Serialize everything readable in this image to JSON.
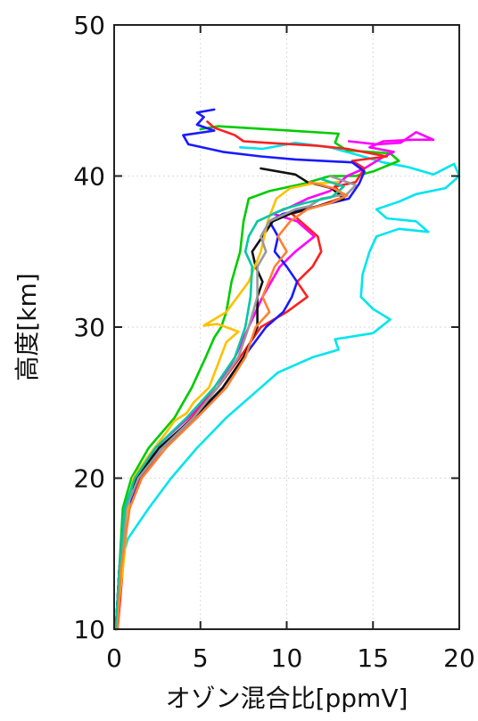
{
  "chart_data": {
    "type": "line",
    "orientation": "profile",
    "title": "",
    "xlabel": "オゾン混合比[ppmV]",
    "ylabel": "高度[km]",
    "xlim": [
      0,
      20
    ],
    "ylim": [
      10,
      50
    ],
    "xticks": [
      0,
      5,
      10,
      15,
      20
    ],
    "yticks": [
      10,
      20,
      30,
      40,
      50
    ],
    "grid": true,
    "legend": "none",
    "series": [
      {
        "color": "#00e5ee",
        "points": [
          [
            0.1,
            10
          ],
          [
            0.3,
            14
          ],
          [
            0.8,
            16
          ],
          [
            2,
            18
          ],
          [
            3.3,
            20
          ],
          [
            4.8,
            22
          ],
          [
            6.5,
            24
          ],
          [
            8.5,
            26
          ],
          [
            9.5,
            27
          ],
          [
            11.5,
            28
          ],
          [
            13,
            28.5
          ],
          [
            12.8,
            29.2
          ],
          [
            15,
            29.6
          ],
          [
            16,
            30.5
          ],
          [
            15,
            31.2
          ],
          [
            14.3,
            32
          ],
          [
            14.4,
            33.5
          ],
          [
            14.8,
            35
          ],
          [
            15.2,
            36
          ],
          [
            16.5,
            36.5
          ],
          [
            18.2,
            36.3
          ],
          [
            17.5,
            37
          ],
          [
            15.8,
            37.2
          ],
          [
            15.2,
            37.8
          ],
          [
            16.5,
            38.3
          ],
          [
            17.5,
            38.8
          ],
          [
            19.2,
            39.2
          ],
          [
            20,
            40
          ],
          [
            19.7,
            40.8
          ],
          [
            18.5,
            40.1
          ],
          [
            17,
            40.6
          ],
          [
            15.6,
            40.9
          ],
          [
            14.1,
            41.4
          ],
          [
            12.5,
            41.9
          ],
          [
            10.5,
            42.2
          ],
          [
            8.6,
            41.8
          ],
          [
            7.3,
            41.9
          ]
        ]
      },
      {
        "color": "#00cc00",
        "points": [
          [
            0.1,
            10
          ],
          [
            0.3,
            14
          ],
          [
            0.5,
            18
          ],
          [
            1,
            20
          ],
          [
            2,
            22
          ],
          [
            3.5,
            24
          ],
          [
            4.5,
            26
          ],
          [
            5.3,
            28
          ],
          [
            5.8,
            29.3
          ],
          [
            6.2,
            30
          ],
          [
            6.5,
            31
          ],
          [
            6.8,
            33
          ],
          [
            7.3,
            35
          ],
          [
            7.5,
            37
          ],
          [
            7.8,
            38.5
          ],
          [
            9,
            39
          ],
          [
            11,
            39.5
          ],
          [
            12.5,
            40
          ],
          [
            14,
            40
          ],
          [
            15,
            40.3
          ],
          [
            16.5,
            41
          ],
          [
            16,
            41.5
          ],
          [
            13.5,
            41.7
          ],
          [
            12.8,
            42.2
          ],
          [
            13,
            42.8
          ],
          [
            10.2,
            43
          ],
          [
            6,
            43.3
          ],
          [
            5,
            43.1
          ]
        ]
      },
      {
        "color": "#ff00ff",
        "points": [
          [
            0.1,
            10
          ],
          [
            0.3,
            14
          ],
          [
            0.6,
            18
          ],
          [
            1.3,
            20
          ],
          [
            2.4,
            22
          ],
          [
            4.3,
            24
          ],
          [
            6,
            26
          ],
          [
            7,
            28
          ],
          [
            7.8,
            30
          ],
          [
            8.6,
            32
          ],
          [
            9.6,
            34
          ],
          [
            10.5,
            35
          ],
          [
            11.6,
            36
          ],
          [
            10.6,
            37
          ],
          [
            9.2,
            37.5
          ],
          [
            10.3,
            38
          ],
          [
            11.2,
            38.5
          ],
          [
            12.5,
            39
          ],
          [
            13.5,
            40
          ],
          [
            14.5,
            40.5
          ],
          [
            15.5,
            41.2
          ],
          [
            16.2,
            41.6
          ],
          [
            14.8,
            41.9
          ],
          [
            15.6,
            42.3
          ],
          [
            17.3,
            42.4
          ],
          [
            18.5,
            42.4
          ],
          [
            17.5,
            42.9
          ],
          [
            16.6,
            42.2
          ],
          [
            15.2,
            42.1
          ],
          [
            13.6,
            42.3
          ]
        ]
      },
      {
        "color": "#ff2020",
        "points": [
          [
            0.2,
            10
          ],
          [
            0.5,
            14
          ],
          [
            0.8,
            18
          ],
          [
            1.5,
            20
          ],
          [
            2.8,
            22
          ],
          [
            4.5,
            24
          ],
          [
            6,
            26
          ],
          [
            7.3,
            28
          ],
          [
            8.5,
            30
          ],
          [
            10,
            31
          ],
          [
            11.2,
            32
          ],
          [
            10.6,
            33
          ],
          [
            11.5,
            34
          ],
          [
            12,
            35
          ],
          [
            11.8,
            36
          ],
          [
            10.8,
            37
          ],
          [
            10.3,
            37.5
          ],
          [
            11.8,
            38
          ],
          [
            13.3,
            38.6
          ],
          [
            12.8,
            39.3
          ],
          [
            14,
            39.6
          ],
          [
            14.5,
            40.5
          ],
          [
            13.8,
            41
          ],
          [
            15.8,
            41.3
          ],
          [
            13.5,
            41.8
          ],
          [
            11.8,
            42
          ],
          [
            8.8,
            42.2
          ],
          [
            7.5,
            42.3
          ],
          [
            7,
            42.7
          ],
          [
            5.8,
            43.2
          ],
          [
            5.4,
            43.6
          ]
        ]
      },
      {
        "color": "#1a1aff",
        "points": [
          [
            0.1,
            10
          ],
          [
            0.3,
            14
          ],
          [
            0.8,
            18
          ],
          [
            1.4,
            20
          ],
          [
            2.8,
            22
          ],
          [
            4.8,
            24
          ],
          [
            6.3,
            26
          ],
          [
            7.5,
            28
          ],
          [
            8.8,
            30
          ],
          [
            9.8,
            31
          ],
          [
            10.3,
            32
          ],
          [
            10.6,
            33
          ],
          [
            10,
            34
          ],
          [
            9.3,
            35
          ],
          [
            9.5,
            36
          ],
          [
            9,
            37
          ],
          [
            9.8,
            37.5
          ],
          [
            11.8,
            38
          ],
          [
            13.6,
            38.5
          ],
          [
            14.2,
            39.5
          ],
          [
            14.5,
            40.3
          ],
          [
            13.8,
            40.9
          ],
          [
            10.5,
            41.1
          ],
          [
            8.5,
            41.3
          ],
          [
            6.3,
            41.6
          ],
          [
            4.3,
            42.1
          ],
          [
            4,
            42.7
          ],
          [
            5.8,
            43
          ],
          [
            4.8,
            43.4
          ],
          [
            5.2,
            43.9
          ],
          [
            4.8,
            44.2
          ],
          [
            5.8,
            44.4
          ]
        ]
      },
      {
        "color": "#111111",
        "points": [
          [
            0.1,
            10
          ],
          [
            0.3,
            14
          ],
          [
            0.7,
            18
          ],
          [
            1.3,
            20
          ],
          [
            2.6,
            22
          ],
          [
            4.6,
            24
          ],
          [
            6.3,
            26
          ],
          [
            7.5,
            28
          ],
          [
            8.3,
            30
          ],
          [
            8.3,
            32
          ],
          [
            8.6,
            33
          ],
          [
            8.2,
            34
          ],
          [
            8,
            35
          ],
          [
            8.6,
            36
          ],
          [
            9.2,
            37
          ],
          [
            10.2,
            37.5
          ],
          [
            11.8,
            38
          ],
          [
            13.3,
            38.5
          ],
          [
            12.6,
            39.2
          ],
          [
            11.2,
            39.6
          ],
          [
            10.5,
            40.1
          ],
          [
            8.5,
            40.5
          ]
        ]
      },
      {
        "color": "#ffc000",
        "points": [
          [
            0.1,
            10
          ],
          [
            0.6,
            15
          ],
          [
            0.8,
            18
          ],
          [
            1.1,
            20
          ],
          [
            2,
            21.5
          ],
          [
            3,
            23
          ],
          [
            3.5,
            23.8
          ],
          [
            4.2,
            24.3
          ],
          [
            4.6,
            25
          ],
          [
            5.5,
            26
          ],
          [
            6,
            27.5
          ],
          [
            6.5,
            29
          ],
          [
            7.2,
            29.7
          ],
          [
            6,
            30.2
          ],
          [
            5.2,
            30.1
          ],
          [
            6.5,
            31
          ],
          [
            7.8,
            33
          ],
          [
            8.5,
            35
          ],
          [
            8.9,
            37
          ],
          [
            9.4,
            38.5
          ],
          [
            10.2,
            39.2
          ],
          [
            11.5,
            39.5
          ],
          [
            13,
            39.6
          ]
        ]
      },
      {
        "color": "#999999",
        "points": [
          [
            0.1,
            10
          ],
          [
            0.4,
            14
          ],
          [
            0.7,
            18
          ],
          [
            1.4,
            20
          ],
          [
            2.8,
            22
          ],
          [
            4.6,
            24
          ],
          [
            6,
            26
          ],
          [
            7.2,
            28
          ],
          [
            7.8,
            30
          ],
          [
            8.3,
            32
          ],
          [
            8.3,
            34
          ],
          [
            8.8,
            35
          ],
          [
            8.5,
            36
          ],
          [
            9,
            37
          ],
          [
            10.5,
            37.8
          ],
          [
            11.3,
            38
          ],
          [
            12,
            38.5
          ],
          [
            13.5,
            38.8
          ],
          [
            14,
            39.4
          ],
          [
            12.5,
            40
          ]
        ]
      },
      {
        "color": "#00c8a0",
        "points": [
          [
            0.1,
            10
          ],
          [
            0.3,
            14
          ],
          [
            0.6,
            18
          ],
          [
            1.2,
            20
          ],
          [
            2.4,
            22
          ],
          [
            4.2,
            24
          ],
          [
            5.8,
            26
          ],
          [
            7,
            28
          ],
          [
            7.6,
            30
          ],
          [
            7.9,
            32
          ],
          [
            8,
            34
          ],
          [
            7.6,
            35
          ],
          [
            7.8,
            36
          ],
          [
            8.3,
            37
          ],
          [
            9.8,
            37.8
          ],
          [
            11,
            38.2
          ],
          [
            12.6,
            38.6
          ],
          [
            13.3,
            39.3
          ],
          [
            12,
            39.8
          ]
        ]
      },
      {
        "color": "#ff8030",
        "points": [
          [
            0.2,
            10
          ],
          [
            0.4,
            14
          ],
          [
            0.9,
            18
          ],
          [
            1.6,
            20
          ],
          [
            3,
            22
          ],
          [
            4.8,
            24
          ],
          [
            6.5,
            26
          ],
          [
            7.6,
            28
          ],
          [
            8.2,
            30
          ],
          [
            9,
            31
          ],
          [
            8.6,
            32
          ],
          [
            9.3,
            34
          ],
          [
            10,
            35
          ],
          [
            9.5,
            36
          ],
          [
            10.2,
            37
          ],
          [
            11.2,
            37.8
          ],
          [
            12.5,
            38.2
          ],
          [
            13.5,
            38.7
          ],
          [
            12.7,
            39.2
          ],
          [
            11.3,
            39.6
          ]
        ]
      }
    ]
  }
}
